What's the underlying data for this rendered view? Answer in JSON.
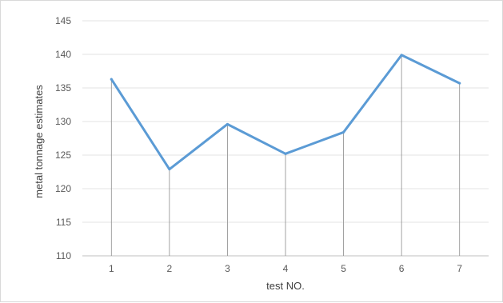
{
  "chart_data": {
    "type": "line",
    "title": "",
    "xlabel": "test NO.",
    "ylabel": "metal tonnage estimates",
    "categories": [
      "1",
      "2",
      "3",
      "4",
      "5",
      "6",
      "7"
    ],
    "series": [
      {
        "values": [
          136.3,
          122.9,
          129.6,
          125.2,
          128.4,
          139.9,
          135.7
        ],
        "color": "#5b9bd5"
      }
    ],
    "ylim": [
      110,
      145
    ],
    "yticks": [
      "110",
      "115",
      "120",
      "125",
      "130",
      "135",
      "140",
      "145"
    ],
    "grid": true,
    "drop_lines": true,
    "legend": "none"
  }
}
